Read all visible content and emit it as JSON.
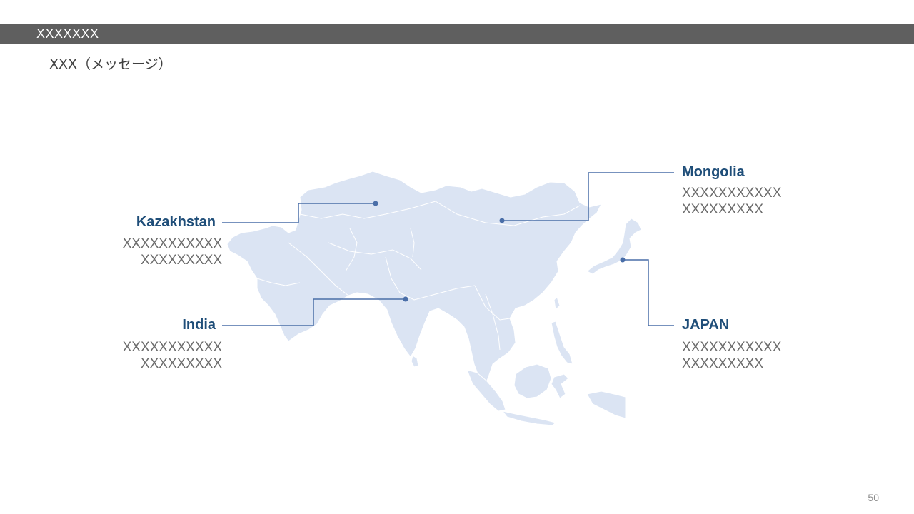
{
  "header": {
    "title": "XXXXXXX",
    "message": "XXX（メッセージ）"
  },
  "page_number": "50",
  "map": {
    "region": "Asia",
    "land_color": "#dbe4f3",
    "border_color": "#ffffff",
    "accent_color": "#4a6ea8"
  },
  "callouts": {
    "kazakhstan": {
      "title": "Kazakhstan",
      "line1": "XXXXXXXXXXX",
      "line2": "XXXXXXXXX"
    },
    "india": {
      "title": "India",
      "line1": "XXXXXXXXXXX",
      "line2": "XXXXXXXXX"
    },
    "mongolia": {
      "title": "Mongolia",
      "line1": "XXXXXXXXXXX",
      "line2": "XXXXXXXXX"
    },
    "japan": {
      "title": "JAPAN",
      "line1": "XXXXXXXXXXX",
      "line2": "XXXXXXXXX"
    }
  }
}
